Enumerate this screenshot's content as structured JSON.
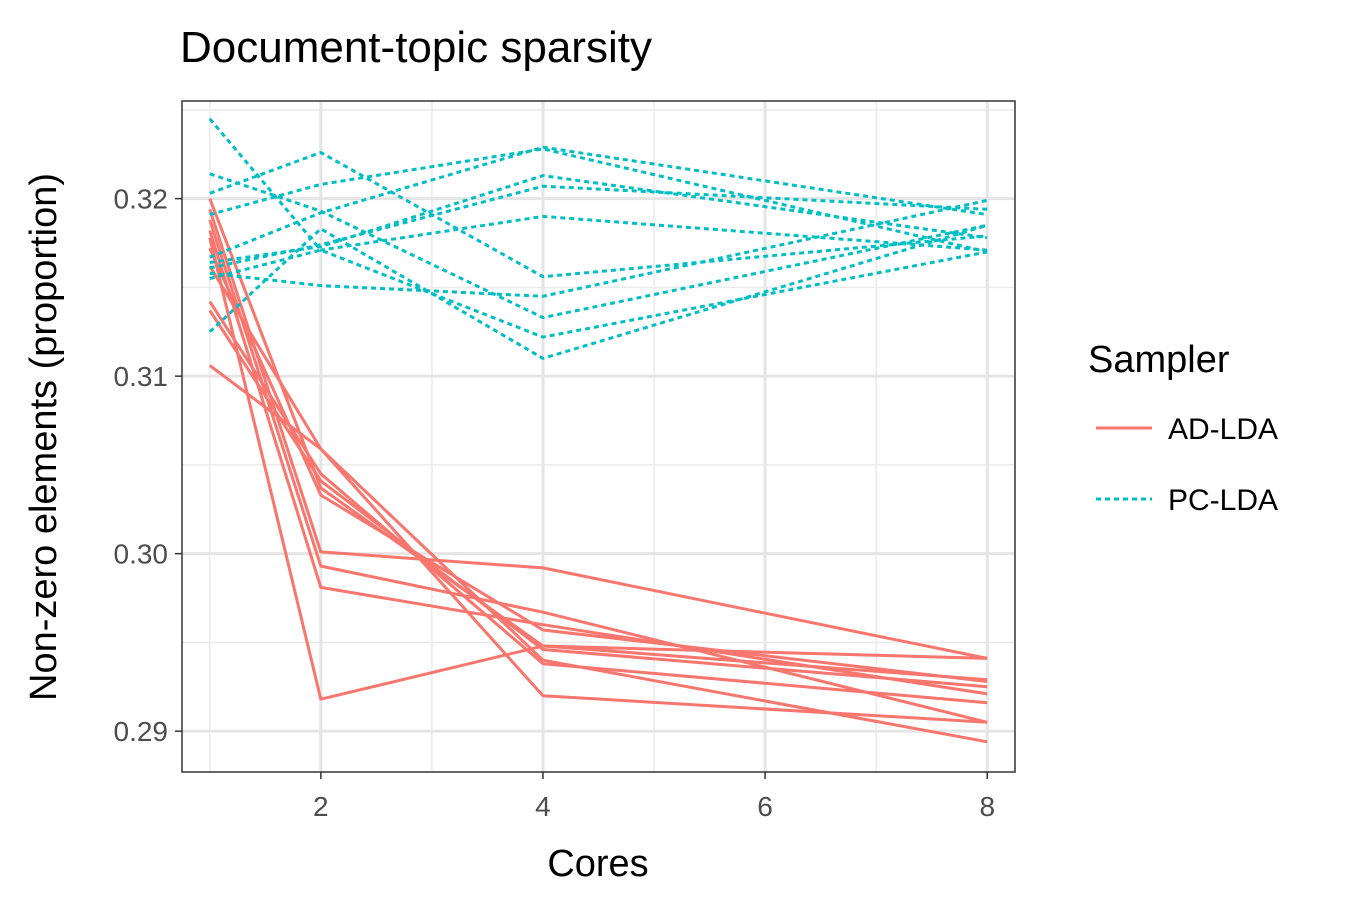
{
  "chart_data": {
    "type": "line",
    "title": "Document-topic sparsity",
    "xlabel": "Cores",
    "ylabel": "Non-zero elements (proportion)",
    "xlim": [
      0.75,
      8.25
    ],
    "ylim": [
      0.2877,
      0.3255
    ],
    "x_ticks": [
      2,
      4,
      6,
      8
    ],
    "x_tick_labels": [
      "2",
      "4",
      "6",
      "8"
    ],
    "y_ticks": [
      0.29,
      0.3,
      0.31,
      0.32
    ],
    "y_tick_labels": [
      "0.29",
      "0.30",
      "0.31",
      "0.32"
    ],
    "grid": true,
    "legend": {
      "title": "Sampler",
      "placement": "right",
      "entries": [
        {
          "label": "AD-LDA",
          "color": "#F8766D",
          "linestyle": "solid"
        },
        {
          "label": "PC-LDA",
          "color": "#00BFC4",
          "linestyle": "dotted"
        }
      ]
    },
    "x": [
      1,
      2,
      4,
      8
    ],
    "series": [
      {
        "group": "AD-LDA",
        "values": [
          0.32,
          0.3037,
          0.2948,
          0.2929
        ]
      },
      {
        "group": "AD-LDA",
        "values": [
          0.3194,
          0.3001,
          0.2992,
          0.2941
        ]
      },
      {
        "group": "AD-LDA",
        "values": [
          0.3188,
          0.2993,
          0.2967,
          0.2905
        ]
      },
      {
        "group": "AD-LDA",
        "values": [
          0.3182,
          0.2981,
          0.296,
          0.2921
        ]
      },
      {
        "group": "AD-LDA",
        "values": [
          0.3178,
          0.2918,
          0.2948,
          0.2941
        ]
      },
      {
        "group": "AD-LDA",
        "values": [
          0.3172,
          0.3033,
          0.2957,
          0.2928
        ]
      },
      {
        "group": "AD-LDA",
        "values": [
          0.3162,
          0.3059,
          0.294,
          0.2894
        ]
      },
      {
        "group": "AD-LDA",
        "values": [
          0.3142,
          0.3045,
          0.2938,
          0.2916
        ]
      },
      {
        "group": "AD-LDA",
        "values": [
          0.3137,
          0.3041,
          0.2946,
          0.2925
        ]
      },
      {
        "group": "AD-LDA",
        "values": [
          0.3106,
          0.3059,
          0.292,
          0.2905
        ]
      },
      {
        "group": "PC-LDA",
        "values": [
          0.3245,
          0.3171,
          0.319,
          0.3171
        ]
      },
      {
        "group": "PC-LDA",
        "values": [
          0.3214,
          0.3193,
          0.3133,
          0.3185
        ]
      },
      {
        "group": "PC-LDA",
        "values": [
          0.3203,
          0.3226,
          0.3156,
          0.3179
        ]
      },
      {
        "group": "PC-LDA",
        "values": [
          0.3191,
          0.3208,
          0.3228,
          0.317
        ]
      },
      {
        "group": "PC-LDA",
        "values": [
          0.3167,
          0.3192,
          0.3229,
          0.3191
        ]
      },
      {
        "group": "PC-LDA",
        "values": [
          0.3164,
          0.3173,
          0.3213,
          0.3178
        ]
      },
      {
        "group": "PC-LDA",
        "values": [
          0.3161,
          0.3174,
          0.3207,
          0.3194
        ]
      },
      {
        "group": "PC-LDA",
        "values": [
          0.3158,
          0.3151,
          0.3145,
          0.3199
        ]
      },
      {
        "group": "PC-LDA",
        "values": [
          0.3155,
          0.3171,
          0.3122,
          0.317
        ]
      },
      {
        "group": "PC-LDA",
        "values": [
          0.3125,
          0.3183,
          0.311,
          0.3185
        ]
      }
    ]
  }
}
